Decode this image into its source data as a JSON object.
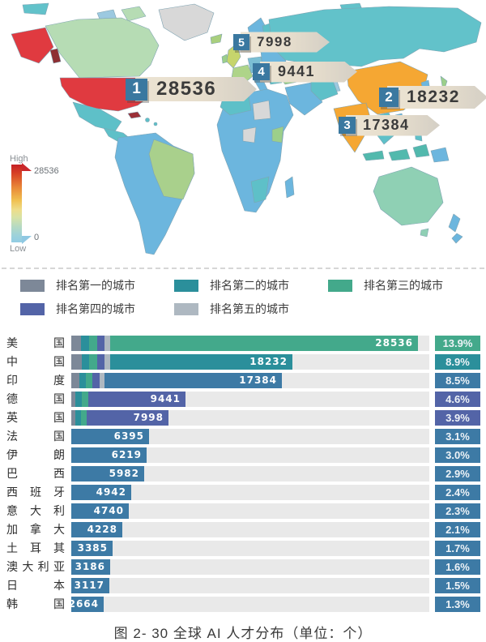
{
  "palette": {
    "rank1": "#7d8898",
    "rank2": "#2b8f9b",
    "rank3": "#43a98b",
    "rank4": "#5364a7",
    "rank5": "#aeb8c1",
    "steel": "#3d7aa5",
    "usa_red": "#e03a40",
    "cn_orange": "#f5a733",
    "track_gray": "#e9e9e9"
  },
  "map": {
    "colorbar": {
      "high_label": "High",
      "max_value": "28536",
      "low_label": "Low",
      "min_value": "0"
    },
    "callouts": [
      {
        "rank": "1",
        "value": "28536"
      },
      {
        "rank": "2",
        "value": "18232"
      },
      {
        "rank": "3",
        "value": "17384"
      },
      {
        "rank": "4",
        "value": "9441"
      },
      {
        "rank": "5",
        "value": "7998"
      }
    ]
  },
  "legend": {
    "items": [
      {
        "label": "排名第一的城市",
        "color": "#7d8898"
      },
      {
        "label": "排名第二的城市",
        "color": "#2b8f9b"
      },
      {
        "label": "排名第三的城市",
        "color": "#43a98b"
      },
      {
        "label": "排名第四的城市",
        "color": "#5364a7"
      },
      {
        "label": "排名第五的城市",
        "color": "#aeb8c1"
      }
    ]
  },
  "chart_data": {
    "type": "bar",
    "title": "图 2- 30 全球 AI 人才分布（单位：个）",
    "unit": "个",
    "categories": [
      "美国",
      "中国",
      "印度",
      "德国",
      "英国",
      "法国",
      "伊朗",
      "巴西",
      "西班牙",
      "意大利",
      "加拿大",
      "土耳其",
      "澳大利亚",
      "日本",
      "韩国"
    ],
    "values": [
      28536,
      18232,
      17384,
      9441,
      7998,
      6395,
      6219,
      5982,
      4942,
      4740,
      4228,
      3385,
      3186,
      3117,
      2664
    ],
    "percents": [
      "13.9%",
      "8.9%",
      "8.5%",
      "4.6%",
      "3.9%",
      "3.1%",
      "3.0%",
      "2.9%",
      "2.4%",
      "2.3%",
      "2.1%",
      "1.7%",
      "1.6%",
      "1.5%",
      "1.3%"
    ],
    "bar_colors": [
      "rank3",
      "rank2",
      "steel",
      "rank4",
      "rank4",
      "steel",
      "steel",
      "steel",
      "steel",
      "steel",
      "steel",
      "steel",
      "steel",
      "steel",
      "steel"
    ],
    "segments": [
      [
        [
          "rank1",
          12
        ],
        [
          "rank2",
          10
        ],
        [
          "rank3",
          10
        ],
        [
          "rank4",
          9
        ],
        [
          "rank5",
          7
        ]
      ],
      [
        [
          "rank1",
          13
        ],
        [
          "rank2",
          9
        ],
        [
          "rank3",
          10
        ],
        [
          "rank4",
          9
        ],
        [
          "rank5",
          7
        ]
      ],
      [
        [
          "rank1",
          10
        ],
        [
          "rank2",
          8
        ],
        [
          "rank3",
          8
        ],
        [
          "rank4",
          9
        ],
        [
          "rank5",
          6
        ]
      ],
      [
        [
          "rank1",
          5
        ],
        [
          "rank2",
          8
        ],
        [
          "rank3",
          8
        ]
      ],
      [
        [
          "rank1",
          5
        ],
        [
          "rank2",
          7
        ],
        [
          "rank3",
          7
        ]
      ],
      [],
      [],
      [],
      [],
      [],
      [],
      [],
      [],
      [],
      []
    ],
    "xlim": [
      0,
      29500
    ],
    "legend_position": "top",
    "grid": false
  }
}
